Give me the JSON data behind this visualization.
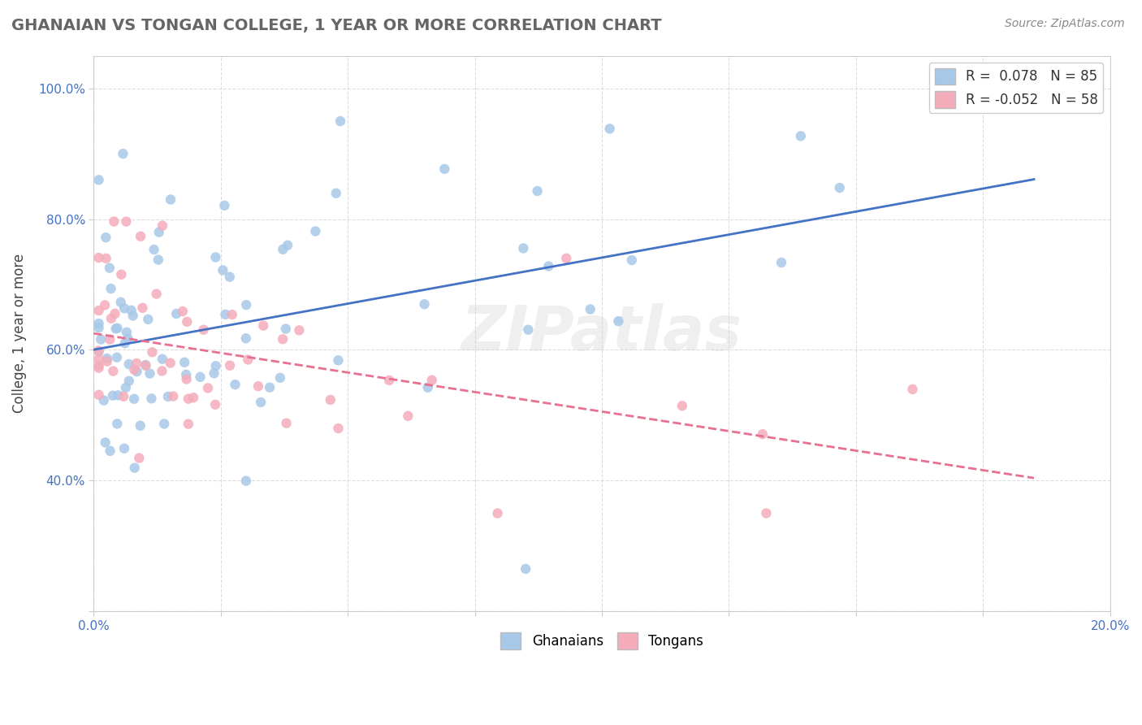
{
  "title": "GHANAIAN VS TONGAN COLLEGE, 1 YEAR OR MORE CORRELATION CHART",
  "source_text": "Source: ZipAtlas.com",
  "ylabel_text": "College, 1 year or more",
  "xlim": [
    0.0,
    0.2
  ],
  "ylim": [
    0.2,
    1.05
  ],
  "xtick_positions": [
    0.0,
    0.025,
    0.05,
    0.075,
    0.1,
    0.125,
    0.15,
    0.175,
    0.2
  ],
  "xtick_labels": [
    "0.0%",
    "",
    "",
    "",
    "",
    "",
    "",
    "",
    "20.0%"
  ],
  "ytick_positions": [
    0.2,
    0.4,
    0.6,
    0.8,
    1.0
  ],
  "ytick_labels": [
    "",
    "40.0%",
    "60.0%",
    "80.0%",
    "100.0%"
  ],
  "blue_fill": "#A8C8E8",
  "pink_fill": "#F4ACBA",
  "blue_line_color": "#4472C4",
  "pink_line_color": "#E87090",
  "N_blue": 85,
  "N_pink": 58,
  "legend_label_blue": "R =  0.078   N = 85",
  "legend_label_pink": "R = -0.052   N = 58",
  "ghanaian_legend": "Ghanaians",
  "tongan_legend": "Tongans",
  "watermark": "ZIPatlas",
  "grid_color": "#DDDDDD",
  "tick_color": "#4472C4",
  "title_color": "#666666",
  "source_color": "#888888"
}
